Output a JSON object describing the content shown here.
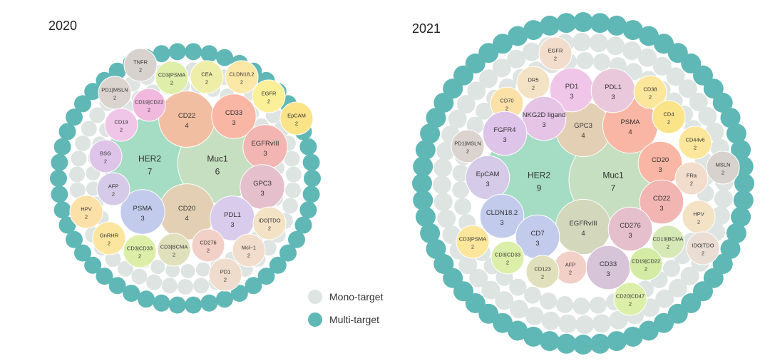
{
  "legend": {
    "mono": {
      "label": "Mono-target",
      "color": "#dde4e1"
    },
    "multi": {
      "label": "Multi-target",
      "color": "#5fb8b5"
    }
  },
  "chart_data": [
    {
      "type": "bubble",
      "title": "2020",
      "targets": [
        {
          "name": "HER2",
          "count": 7,
          "color": "#a5dcc4"
        },
        {
          "name": "Muc1",
          "count": 6,
          "color": "#c6dfc0"
        },
        {
          "name": "CD22",
          "count": 4,
          "color": "#f2bea2"
        },
        {
          "name": "CD20",
          "count": 4,
          "color": "#e3d0b4"
        },
        {
          "name": "CD33",
          "count": 3,
          "color": "#fab6a4"
        },
        {
          "name": "EGFRvIII",
          "count": 3,
          "color": "#f2b5b2"
        },
        {
          "name": "GPC3",
          "count": 3,
          "color": "#e5c0cc"
        },
        {
          "name": "PDL1",
          "count": 3,
          "color": "#d8cbec"
        },
        {
          "name": "PSMA",
          "count": 3,
          "color": "#c3cbec"
        },
        {
          "name": "TNFR",
          "count": 2,
          "color": "#d7d2ce"
        },
        {
          "name": "CD3|PSMA",
          "count": 2,
          "color": "#dfeea8"
        },
        {
          "name": "CEA",
          "count": 2,
          "color": "#eeeea8"
        },
        {
          "name": "CLDN18.2",
          "count": 2,
          "color": "#fbe7a6"
        },
        {
          "name": "EGFR",
          "count": 2,
          "color": "#fbf097"
        },
        {
          "name": "EpCAM",
          "count": 2,
          "color": "#fbe387"
        },
        {
          "name": "PD1|MSLN",
          "count": 2,
          "color": "#dbd4ce"
        },
        {
          "name": "CD19|CD22",
          "count": 2,
          "color": "#f1b9de"
        },
        {
          "name": "CD19",
          "count": 2,
          "color": "#f0c6e8"
        },
        {
          "name": "BSG",
          "count": 2,
          "color": "#dfc4ea"
        },
        {
          "name": "AFP",
          "count": 2,
          "color": "#d5cbe8"
        },
        {
          "name": "HPV",
          "count": 2,
          "color": "#fbe1a8"
        },
        {
          "name": "GnRHR",
          "count": 2,
          "color": "#fbe59f"
        },
        {
          "name": "CD3|CD33",
          "count": 2,
          "color": "#dcefa9"
        },
        {
          "name": "CD3|BCMA",
          "count": 2,
          "color": "#e0e0bd"
        },
        {
          "name": "CD276",
          "count": 2,
          "color": "#f2cfc7"
        },
        {
          "name": "Mcl−1",
          "count": 2,
          "color": "#f2dccb"
        },
        {
          "name": "PD1",
          "count": 2,
          "color": "#efdccc"
        },
        {
          "name": "IDO|TDO",
          "count": 2,
          "color": "#f4e2c5"
        }
      ]
    },
    {
      "type": "bubble",
      "title": "2021",
      "targets": [
        {
          "name": "HER2",
          "count": 9,
          "color": "#a5dcc4"
        },
        {
          "name": "Muc1",
          "count": 7,
          "color": "#c6dfc0"
        },
        {
          "name": "GPC3",
          "count": 4,
          "color": "#e3d0b4"
        },
        {
          "name": "PSMA",
          "count": 4,
          "color": "#fab6a4"
        },
        {
          "name": "EGFRvIII",
          "count": 4,
          "color": "#d3d8bd"
        },
        {
          "name": "EGFR",
          "count": 2,
          "color": "#f2dccb"
        },
        {
          "name": "DR5",
          "count": 2,
          "color": "#f4e2c5"
        },
        {
          "name": "PD1",
          "count": 3,
          "color": "#f0c6e8"
        },
        {
          "name": "PDL1",
          "count": 3,
          "color": "#e9c8dc"
        },
        {
          "name": "CD38",
          "count": 2,
          "color": "#fbe69c"
        },
        {
          "name": "CD70",
          "count": 2,
          "color": "#fbe1a8"
        },
        {
          "name": "NKG2D ligand",
          "count": 3,
          "color": "#e6c4e6"
        },
        {
          "name": "CD4",
          "count": 2,
          "color": "#fbe387"
        },
        {
          "name": "CD44v6",
          "count": 2,
          "color": "#fbe69c"
        },
        {
          "name": "PD1|MSLN",
          "count": 2,
          "color": "#dbd4ce"
        },
        {
          "name": "FGFR4",
          "count": 3,
          "color": "#dfc4ea"
        },
        {
          "name": "CD20",
          "count": 3,
          "color": "#fab6a4"
        },
        {
          "name": "MSLN",
          "count": 2,
          "color": "#d7d2ce"
        },
        {
          "name": "EpCAM",
          "count": 3,
          "color": "#d5cbe8"
        },
        {
          "name": "FRa",
          "count": 2,
          "color": "#f2dccb"
        },
        {
          "name": "CD22",
          "count": 3,
          "color": "#f2b5b2"
        },
        {
          "name": "HPV",
          "count": 2,
          "color": "#f4e2c5"
        },
        {
          "name": "CLDN18.2",
          "count": 3,
          "color": "#c3cbec"
        },
        {
          "name": "CD7",
          "count": 3,
          "color": "#c3cbec"
        },
        {
          "name": "CD276",
          "count": 3,
          "color": "#e5c0cc"
        },
        {
          "name": "CD19|BCMA",
          "count": 2,
          "color": "#d7e8b7"
        },
        {
          "name": "IDO|TDO",
          "count": 2,
          "color": "#e9ddd4"
        },
        {
          "name": "CD3|PSMA",
          "count": 2,
          "color": "#fbe69c"
        },
        {
          "name": "CD3|CD33",
          "count": 2,
          "color": "#dcefa9"
        },
        {
          "name": "AFP",
          "count": 2,
          "color": "#f2cfc7"
        },
        {
          "name": "CD33",
          "count": 3,
          "color": "#d8c4d8"
        },
        {
          "name": "CD19|CD22",
          "count": 2,
          "color": "#d3eba5"
        },
        {
          "name": "CD123",
          "count": 2,
          "color": "#e0e0bd"
        },
        {
          "name": "CD20|CD47",
          "count": 2,
          "color": "#dcefa9"
        }
      ]
    }
  ]
}
